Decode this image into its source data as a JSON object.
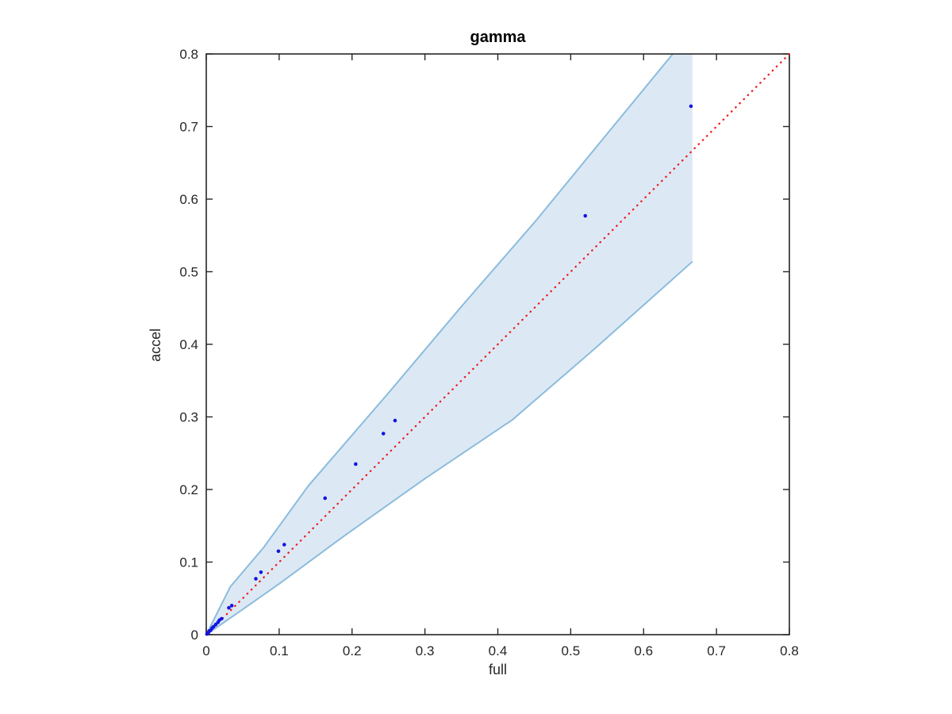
{
  "figure": {
    "background_color": "#ffffff"
  },
  "chart_data": {
    "type": "scatter",
    "title": "gamma",
    "xlabel": "full",
    "ylabel": "accel",
    "xlim": [
      0,
      0.8
    ],
    "ylim": [
      0,
      0.8
    ],
    "x_ticks": [
      0,
      0.1,
      0.2,
      0.3,
      0.4,
      0.5,
      0.6,
      0.7,
      0.8
    ],
    "y_ticks": [
      0,
      0.1,
      0.2,
      0.3,
      0.4,
      0.5,
      0.6,
      0.7,
      0.8
    ],
    "grid": false,
    "box": true,
    "axis_color": "#262626",
    "tick_label_color": "#262626",
    "points": [
      [
        0.001,
        0.001
      ],
      [
        0.002,
        0.002
      ],
      [
        0.003,
        0.003
      ],
      [
        0.004,
        0.005
      ],
      [
        0.006,
        0.006
      ],
      [
        0.008,
        0.009
      ],
      [
        0.01,
        0.011
      ],
      [
        0.013,
        0.014
      ],
      [
        0.016,
        0.017
      ],
      [
        0.018,
        0.02
      ],
      [
        0.021,
        0.022
      ],
      [
        0.031,
        0.037
      ],
      [
        0.035,
        0.04
      ],
      [
        0.068,
        0.077
      ],
      [
        0.075,
        0.086
      ],
      [
        0.099,
        0.115
      ],
      [
        0.107,
        0.124
      ],
      [
        0.163,
        0.188
      ],
      [
        0.205,
        0.235
      ],
      [
        0.243,
        0.277
      ],
      [
        0.259,
        0.295
      ],
      [
        0.52,
        0.577
      ],
      [
        0.665,
        0.728
      ]
    ],
    "marker": {
      "shape": "dot",
      "color": "#1414e0",
      "radius": 2.3
    },
    "identity_line": {
      "style": "dotted",
      "color": "#ee1c1c",
      "from": [
        0,
        0
      ],
      "to": [
        0.8,
        0.8
      ]
    },
    "confidence_band": {
      "fill_color": "#dce9f5",
      "edge_color": "#8cbcdc",
      "upper_edge": [
        [
          0,
          0
        ],
        [
          0.033,
          0.066
        ],
        [
          0.079,
          0.1205
        ],
        [
          0.14,
          0.205
        ],
        [
          0.25,
          0.333
        ],
        [
          0.35,
          0.452
        ],
        [
          0.452,
          0.57
        ],
        [
          0.55,
          0.69
        ],
        [
          0.64,
          0.8
        ]
      ],
      "clip_corner": [
        0.667,
        0.8
      ],
      "lower_edge": [
        [
          0,
          0
        ],
        [
          0.046,
          0.032
        ],
        [
          0.1,
          0.07
        ],
        [
          0.185,
          0.133
        ],
        [
          0.3,
          0.215
        ],
        [
          0.42,
          0.296
        ],
        [
          0.533,
          0.394
        ],
        [
          0.667,
          0.514
        ]
      ]
    }
  }
}
